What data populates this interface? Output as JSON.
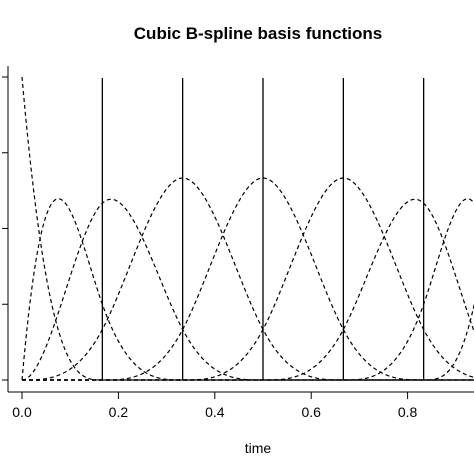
{
  "chart_data": {
    "type": "line",
    "title": "Cubic B-spline basis functions",
    "xlabel": "time",
    "ylabel": "",
    "xlim": [
      0.0,
      1.0
    ],
    "ylim": [
      0.0,
      1.0
    ],
    "x_ticks": [
      0.0,
      0.2,
      0.4,
      0.6,
      0.8
    ],
    "x_tick_labels": [
      "0.0",
      "0.2",
      "0.4",
      "0.6",
      "0.8"
    ],
    "y_ticks": [
      0.0,
      0.25,
      0.5,
      0.75,
      1.0
    ],
    "knots": [
      0.1667,
      0.3333,
      0.5,
      0.6667,
      0.8333
    ],
    "grid": false,
    "legend": "none",
    "line_color": "#000000",
    "series_style": "dashed",
    "knot_style": "solid",
    "basis_order": 4,
    "boundary_knots": [
      0.0,
      1.0
    ],
    "visible_x_range": [
      0.0,
      0.98
    ]
  }
}
